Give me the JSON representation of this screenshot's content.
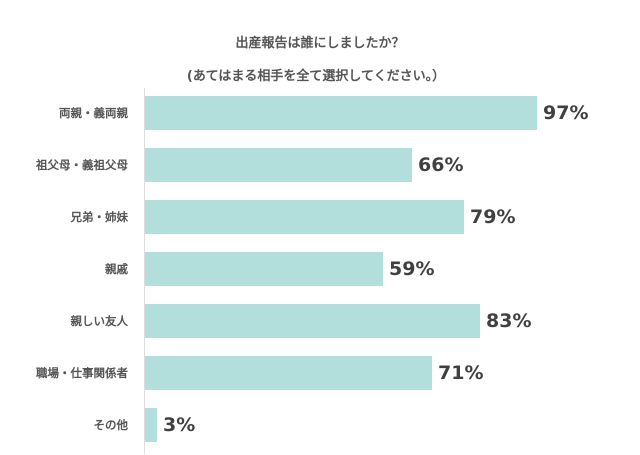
{
  "chart_data": {
    "type": "bar",
    "orientation": "horizontal",
    "title": "出産報告は誰にしましたか？",
    "subtitle": "(あてはまる相手を全て選択してください。）",
    "categories": [
      "両親・義両親",
      "祖父母・義祖父母",
      "兄弟・姉妹",
      "親戚",
      "親しい友人",
      "職場・仕事関係者",
      "その他"
    ],
    "values": [
      97,
      66,
      79,
      59,
      83,
      71,
      3
    ],
    "value_labels": [
      "97%",
      "66%",
      "79%",
      "59%",
      "83%",
      "71%",
      "3%"
    ],
    "unit": "%",
    "xlabel": "",
    "ylabel": "",
    "xlim": [
      0,
      100
    ],
    "grid": false,
    "legend": null,
    "bar_color": "#b2dfdb"
  },
  "header": {
    "title_line1": "出産報告は誰にしましたか？",
    "title_line2": "(あてはまる相手を全て選択してください。）"
  },
  "rows": [
    {
      "label": "両親・義両親",
      "value": 97,
      "value_label": "97%"
    },
    {
      "label": "祖父母・義祖父母",
      "value": 66,
      "value_label": "66%"
    },
    {
      "label": "兄弟・姉妹",
      "value": 79,
      "value_label": "79%"
    },
    {
      "label": "親戚",
      "value": 59,
      "value_label": "59%"
    },
    {
      "label": "親しい友人",
      "value": 83,
      "value_label": "83%"
    },
    {
      "label": "職場・仕事関係者",
      "value": 71,
      "value_label": "71%"
    },
    {
      "label": "その他",
      "value": 3,
      "value_label": "3%"
    }
  ]
}
